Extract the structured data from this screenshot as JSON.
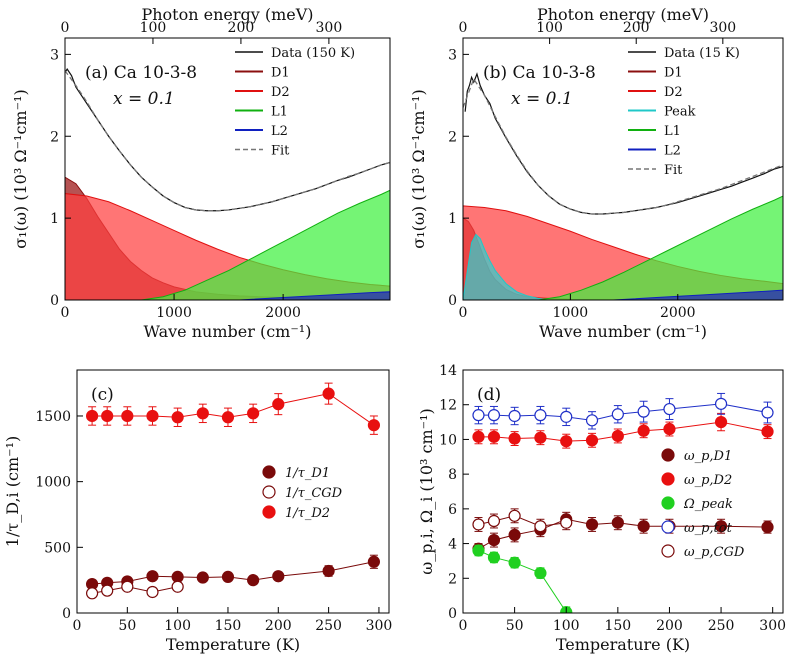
{
  "chart_data": [
    {
      "id": "a",
      "type": "area",
      "panel_label": "(a) Ca 10-3-8",
      "subtitle": "x = 0.1",
      "xlabel": "Wave number (cm⁻¹)",
      "top_xlabel": "Photon energy (meV)",
      "ylabel": "σ₁(ω) (10³ Ω⁻¹cm⁻¹)",
      "xlim": [
        0,
        2980
      ],
      "ylim": [
        0,
        3.2
      ],
      "xticks": [
        0,
        1000,
        2000
      ],
      "yticks": [
        0,
        1,
        2,
        3
      ],
      "top_ticks": [
        0,
        100,
        200,
        300
      ],
      "legend_position": "top-right",
      "series": [
        {
          "name": "Data (150 K)",
          "kind": "line",
          "color": "#111111",
          "x": [
            0,
            20,
            60,
            100,
            150,
            200,
            300,
            400,
            500,
            600,
            700,
            800,
            900,
            1000,
            1100,
            1200,
            1300,
            1400,
            1500,
            1600,
            1700,
            1800,
            1900,
            2000,
            2100,
            2200,
            2300,
            2400,
            2500,
            2600,
            2700,
            2800,
            2900,
            2980
          ],
          "y": [
            2.78,
            2.82,
            2.74,
            2.6,
            2.5,
            2.4,
            2.2,
            2.0,
            1.82,
            1.65,
            1.5,
            1.38,
            1.27,
            1.19,
            1.13,
            1.1,
            1.09,
            1.09,
            1.1,
            1.12,
            1.14,
            1.17,
            1.2,
            1.24,
            1.28,
            1.32,
            1.36,
            1.41,
            1.46,
            1.5,
            1.55,
            1.6,
            1.65,
            1.68
          ]
        },
        {
          "name": "D1",
          "kind": "area",
          "color": "#8b0f0f",
          "fill": "#9a1010",
          "x": [
            0,
            100,
            200,
            300,
            400,
            500,
            600,
            700,
            800,
            900,
            1000,
            1200,
            1400,
            1600,
            2000,
            2500,
            2980
          ],
          "y": [
            1.5,
            1.42,
            1.24,
            1.02,
            0.82,
            0.62,
            0.47,
            0.36,
            0.27,
            0.21,
            0.16,
            0.1,
            0.07,
            0.05,
            0.03,
            0.02,
            0.01
          ]
        },
        {
          "name": "D2",
          "kind": "area",
          "color": "#e01010",
          "fill": "#ff4040",
          "x": [
            0,
            200,
            400,
            600,
            800,
            1000,
            1200,
            1400,
            1600,
            1800,
            2000,
            2200,
            2400,
            2600,
            2800,
            2980
          ],
          "y": [
            1.3,
            1.27,
            1.2,
            1.09,
            0.97,
            0.85,
            0.73,
            0.62,
            0.52,
            0.44,
            0.37,
            0.31,
            0.26,
            0.22,
            0.19,
            0.17
          ]
        },
        {
          "name": "L1",
          "kind": "area",
          "color": "#10b010",
          "fill": "#40f040",
          "x": [
            700,
            900,
            1100,
            1300,
            1500,
            1700,
            1900,
            2100,
            2300,
            2500,
            2700,
            2900,
            2980
          ],
          "y": [
            0.0,
            0.04,
            0.12,
            0.24,
            0.36,
            0.5,
            0.64,
            0.78,
            0.92,
            1.06,
            1.18,
            1.29,
            1.34
          ]
        },
        {
          "name": "L2",
          "kind": "area",
          "color": "#1020c0",
          "fill": "#2020c0",
          "x": [
            1600,
            2000,
            2400,
            2800,
            2980
          ],
          "y": [
            0.0,
            0.03,
            0.06,
            0.09,
            0.1
          ]
        },
        {
          "name": "Fit",
          "kind": "line",
          "color": "#777777",
          "dashed": true,
          "x": [
            0,
            100,
            200,
            300,
            400,
            500,
            600,
            700,
            800,
            900,
            1000,
            1100,
            1200,
            1300,
            1400,
            1500,
            1600,
            1700,
            1800,
            1900,
            2000,
            2100,
            2200,
            2300,
            2400,
            2500,
            2600,
            2700,
            2800,
            2900,
            2980
          ],
          "y": [
            2.8,
            2.62,
            2.42,
            2.2,
            2.0,
            1.82,
            1.65,
            1.5,
            1.38,
            1.27,
            1.19,
            1.13,
            1.1,
            1.09,
            1.09,
            1.1,
            1.12,
            1.14,
            1.17,
            1.2,
            1.24,
            1.28,
            1.32,
            1.36,
            1.41,
            1.46,
            1.51,
            1.55,
            1.6,
            1.65,
            1.68
          ]
        }
      ]
    },
    {
      "id": "b",
      "type": "area",
      "panel_label": "(b) Ca 10-3-8",
      "subtitle": "x = 0.1",
      "xlabel": "Wave number (cm⁻¹)",
      "top_xlabel": "Photon energy (meV)",
      "ylabel": "σ₁(ω) (10³ Ω⁻¹cm⁻¹)",
      "xlim": [
        0,
        2980
      ],
      "ylim": [
        0,
        3.2
      ],
      "xticks": [
        0,
        1000,
        2000
      ],
      "yticks": [
        0,
        1,
        2,
        3
      ],
      "top_ticks": [
        0,
        100,
        200,
        300
      ],
      "legend_position": "top-right",
      "series": [
        {
          "name": "Data (15 K)",
          "kind": "line",
          "color": "#111111",
          "x": [
            20,
            40,
            60,
            80,
            100,
            130,
            160,
            200,
            250,
            300,
            400,
            500,
            600,
            700,
            800,
            900,
            1000,
            1100,
            1200,
            1300,
            1400,
            1500,
            1600,
            1700,
            1800,
            1900,
            2000,
            2100,
            2200,
            2300,
            2400,
            2500,
            2600,
            2700,
            2800,
            2900,
            2980
          ],
          "y": [
            2.3,
            2.55,
            2.62,
            2.72,
            2.66,
            2.76,
            2.62,
            2.5,
            2.4,
            2.22,
            1.98,
            1.76,
            1.56,
            1.4,
            1.27,
            1.17,
            1.11,
            1.07,
            1.05,
            1.05,
            1.06,
            1.07,
            1.09,
            1.11,
            1.13,
            1.16,
            1.19,
            1.23,
            1.27,
            1.31,
            1.35,
            1.39,
            1.44,
            1.49,
            1.54,
            1.6,
            1.63
          ]
        },
        {
          "name": "D1",
          "kind": "area",
          "color": "#8b0f0f",
          "fill": "#9a1010",
          "x": [
            0,
            50,
            100,
            150,
            200,
            250,
            300,
            400,
            500,
            600,
            800,
            1000
          ],
          "y": [
            1.0,
            0.96,
            0.85,
            0.68,
            0.5,
            0.35,
            0.25,
            0.13,
            0.07,
            0.04,
            0.02,
            0.01
          ]
        },
        {
          "name": "D2",
          "kind": "area",
          "color": "#e01010",
          "fill": "#ff4040",
          "x": [
            0,
            200,
            400,
            600,
            800,
            1000,
            1200,
            1400,
            1600,
            1800,
            2000,
            2200,
            2400,
            2600,
            2800,
            2980
          ],
          "y": [
            1.15,
            1.13,
            1.09,
            1.02,
            0.93,
            0.84,
            0.74,
            0.65,
            0.56,
            0.48,
            0.41,
            0.35,
            0.3,
            0.26,
            0.23,
            0.2
          ]
        },
        {
          "name": "Peak",
          "kind": "area",
          "color": "#20c8c8",
          "fill": "#30d0d0",
          "x": [
            0,
            40,
            80,
            120,
            160,
            200,
            250,
            300,
            400,
            500,
            600,
            700,
            800
          ],
          "y": [
            0.0,
            0.35,
            0.7,
            0.8,
            0.75,
            0.62,
            0.48,
            0.36,
            0.2,
            0.1,
            0.05,
            0.02,
            0.0
          ]
        },
        {
          "name": "L1",
          "kind": "area",
          "color": "#10b010",
          "fill": "#40f040",
          "x": [
            700,
            900,
            1100,
            1300,
            1500,
            1700,
            1900,
            2100,
            2300,
            2500,
            2700,
            2900,
            2980
          ],
          "y": [
            0.0,
            0.04,
            0.12,
            0.22,
            0.34,
            0.47,
            0.6,
            0.73,
            0.86,
            0.99,
            1.11,
            1.22,
            1.27
          ]
        },
        {
          "name": "L2",
          "kind": "area",
          "color": "#1020c0",
          "fill": "#2020c0",
          "x": [
            1400,
            1800,
            2200,
            2600,
            2980
          ],
          "y": [
            0.0,
            0.03,
            0.06,
            0.09,
            0.12
          ]
        },
        {
          "name": "Fit",
          "kind": "line",
          "color": "#777777",
          "dashed": true,
          "x": [
            0,
            100,
            200,
            300,
            400,
            500,
            600,
            700,
            800,
            900,
            1000,
            1100,
            1200,
            1300,
            1400,
            1500,
            1600,
            1700,
            1800,
            1900,
            2000,
            2100,
            2200,
            2300,
            2400,
            2500,
            2600,
            2700,
            2800,
            2900,
            2980
          ],
          "y": [
            2.35,
            2.7,
            2.5,
            2.24,
            1.99,
            1.77,
            1.57,
            1.4,
            1.27,
            1.17,
            1.11,
            1.07,
            1.05,
            1.05,
            1.06,
            1.07,
            1.09,
            1.11,
            1.13,
            1.16,
            1.2,
            1.24,
            1.28,
            1.32,
            1.36,
            1.41,
            1.46,
            1.51,
            1.56,
            1.61,
            1.65
          ]
        }
      ]
    },
    {
      "id": "c",
      "type": "line",
      "panel_label": "(c)",
      "xlabel": "Temperature (K)",
      "ylabel": "1/τ_D,i (cm⁻¹)",
      "xlim": [
        0,
        310
      ],
      "ylim": [
        0,
        1850
      ],
      "xticks": [
        0,
        50,
        100,
        150,
        200,
        250,
        300
      ],
      "yticks": [
        0,
        500,
        1000,
        1500
      ],
      "legend_position": "center-right",
      "series": [
        {
          "name": "1/τ_D1",
          "color": "#7a0a0a",
          "open": false,
          "x": [
            15,
            30,
            50,
            75,
            100,
            125,
            150,
            175,
            200,
            250,
            295
          ],
          "y": [
            220,
            230,
            240,
            280,
            275,
            270,
            275,
            250,
            280,
            320,
            390
          ],
          "err": [
            30,
            30,
            30,
            30,
            30,
            30,
            30,
            30,
            30,
            40,
            50
          ]
        },
        {
          "name": "1/τ_CGD",
          "color": "#7a0a0a",
          "open": true,
          "x": [
            15,
            30,
            50,
            75,
            100
          ],
          "y": [
            150,
            170,
            200,
            160,
            200
          ],
          "err": [
            0,
            0,
            0,
            0,
            0
          ]
        },
        {
          "name": "1/τ_D2",
          "color": "#e81010",
          "open": false,
          "x": [
            15,
            30,
            50,
            75,
            100,
            125,
            150,
            175,
            200,
            250,
            295
          ],
          "y": [
            1500,
            1500,
            1500,
            1500,
            1490,
            1520,
            1490,
            1520,
            1590,
            1670,
            1430
          ],
          "err": [
            70,
            70,
            70,
            70,
            70,
            70,
            70,
            70,
            80,
            80,
            70
          ]
        }
      ]
    },
    {
      "id": "d",
      "type": "line",
      "panel_label": "(d)",
      "xlabel": "Temperature (K)",
      "ylabel": "ω_p,i, Ω_i (10³ cm⁻¹)",
      "xlim": [
        0,
        310
      ],
      "ylim": [
        0,
        14
      ],
      "xticks": [
        0,
        50,
        100,
        150,
        200,
        250,
        300
      ],
      "yticks": [
        0,
        2,
        4,
        6,
        8,
        10,
        12,
        14
      ],
      "legend_position": "center-right",
      "series": [
        {
          "name": "ω_p,D1",
          "color": "#7a0a0a",
          "open": false,
          "x": [
            15,
            30,
            50,
            75,
            100,
            125,
            150,
            175,
            200,
            250,
            295
          ],
          "y": [
            3.7,
            4.2,
            4.5,
            4.8,
            5.4,
            5.1,
            5.2,
            5.0,
            5.0,
            5.0,
            4.95
          ],
          "err": [
            0.3,
            0.4,
            0.4,
            0.4,
            0.4,
            0.4,
            0.4,
            0.4,
            0.4,
            0.4,
            0.35
          ]
        },
        {
          "name": "ω_p,D2",
          "color": "#e81010",
          "open": false,
          "x": [
            15,
            30,
            50,
            75,
            100,
            125,
            150,
            175,
            200,
            250,
            295
          ],
          "y": [
            10.15,
            10.15,
            10.05,
            10.1,
            9.9,
            9.95,
            10.2,
            10.5,
            10.6,
            11.0,
            10.45
          ],
          "err": [
            0.4,
            0.4,
            0.4,
            0.4,
            0.4,
            0.4,
            0.4,
            0.4,
            0.4,
            0.5,
            0.4
          ]
        },
        {
          "name": "Ω_peak",
          "color": "#20d020",
          "open": false,
          "x": [
            15,
            30,
            50,
            75,
            100
          ],
          "y": [
            3.6,
            3.2,
            2.9,
            2.3,
            0.05
          ],
          "err": [
            0.3,
            0.3,
            0.3,
            0.3,
            0.3
          ]
        },
        {
          "name": "ω_p,tot",
          "color": "#2030c8",
          "open": true,
          "x": [
            15,
            30,
            50,
            75,
            100,
            125,
            150,
            175,
            200,
            250,
            295
          ],
          "y": [
            11.4,
            11.4,
            11.35,
            11.4,
            11.3,
            11.1,
            11.45,
            11.6,
            11.75,
            12.05,
            11.55
          ],
          "err": [
            0.5,
            0.5,
            0.5,
            0.5,
            0.5,
            0.5,
            0.5,
            0.6,
            0.6,
            0.6,
            0.6
          ]
        },
        {
          "name": "ω_p,CGD",
          "color": "#7a0a0a",
          "open": true,
          "x": [
            15,
            30,
            50,
            75,
            100
          ],
          "y": [
            5.1,
            5.3,
            5.6,
            5.0,
            5.2
          ],
          "err": [
            0.4,
            0.4,
            0.4,
            0.4,
            0.4
          ]
        }
      ]
    }
  ]
}
